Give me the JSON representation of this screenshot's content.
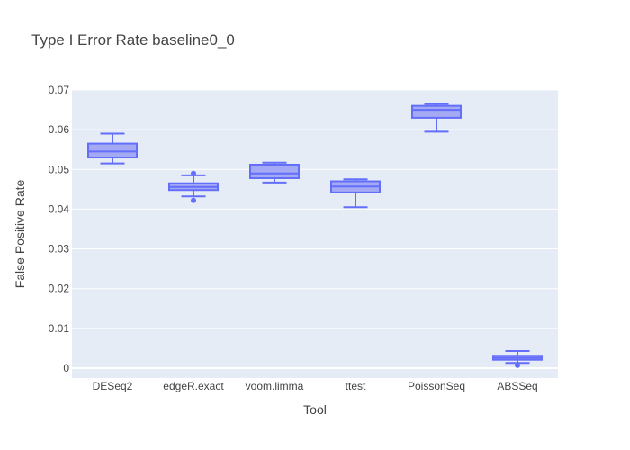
{
  "chart_data": {
    "type": "box",
    "title": "Type I Error Rate baseline0_0",
    "xlabel": "Tool",
    "ylabel": "False Positive Rate",
    "ylim": [
      -0.0025,
      0.07
    ],
    "yticks": [
      {
        "value": 0,
        "label": "0"
      },
      {
        "value": 0.01,
        "label": "0.01"
      },
      {
        "value": 0.02,
        "label": "0.02"
      },
      {
        "value": 0.03,
        "label": "0.03"
      },
      {
        "value": 0.04,
        "label": "0.04"
      },
      {
        "value": 0.05,
        "label": "0.05"
      },
      {
        "value": 0.06,
        "label": "0.06"
      },
      {
        "value": 0.07,
        "label": "0.07"
      }
    ],
    "grid": true,
    "colors": {
      "box_fill": "#a4a9f4",
      "box_line": "#636efa",
      "plot_bg": "#e5ecf6",
      "grid": "#ffffff"
    },
    "categories": [
      "DESeq2",
      "edgeR.exact",
      "voom.limma",
      "ttest",
      "PoissonSeq",
      "ABSSeq"
    ],
    "boxes": [
      {
        "min": 0.0515,
        "q1": 0.053,
        "median": 0.0545,
        "q3": 0.0565,
        "max": 0.059,
        "outliers": []
      },
      {
        "min": 0.0432,
        "q1": 0.0448,
        "median": 0.0456,
        "q3": 0.0465,
        "max": 0.0485,
        "outliers": [
          0.049,
          0.0422
        ]
      },
      {
        "min": 0.0467,
        "q1": 0.0478,
        "median": 0.049,
        "q3": 0.0512,
        "max": 0.0517,
        "outliers": []
      },
      {
        "min": 0.0405,
        "q1": 0.0442,
        "median": 0.0457,
        "q3": 0.047,
        "max": 0.0475,
        "outliers": []
      },
      {
        "min": 0.0595,
        "q1": 0.063,
        "median": 0.065,
        "q3": 0.066,
        "max": 0.0665,
        "outliers": []
      },
      {
        "min": 0.0013,
        "q1": 0.0021,
        "median": 0.0026,
        "q3": 0.0031,
        "max": 0.0043,
        "outliers": [
          0.0007
        ]
      }
    ]
  }
}
